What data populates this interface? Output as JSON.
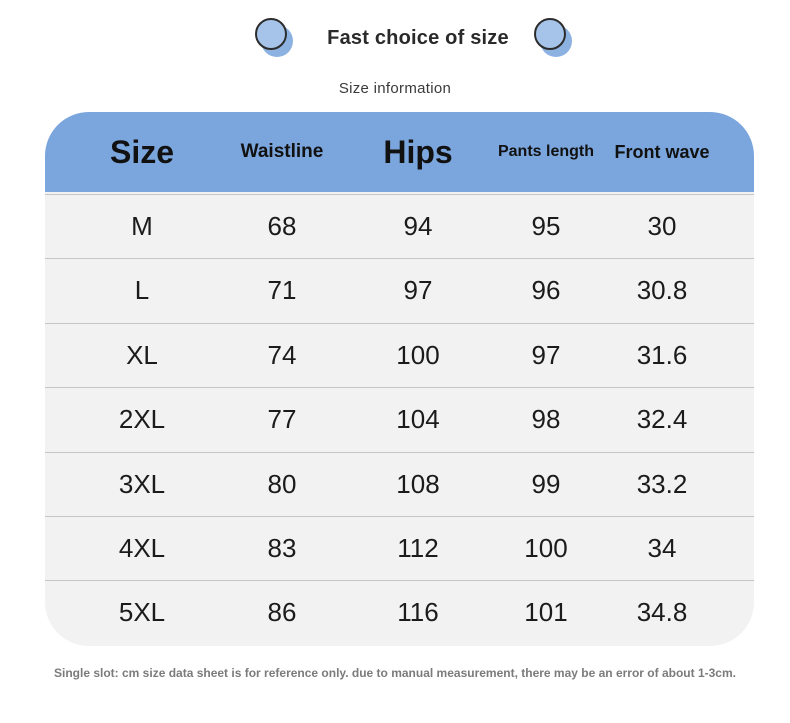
{
  "header": {
    "title": "Fast choice of size",
    "subtitle": "Size  information"
  },
  "table": {
    "columns": [
      "Size",
      "Waistline",
      "Hips",
      "Pants length",
      "Front wave"
    ],
    "rows": [
      [
        "M",
        "68",
        "94",
        "95",
        "30"
      ],
      [
        "L",
        "71",
        "97",
        "96",
        "30.8"
      ],
      [
        "XL",
        "74",
        "100",
        "97",
        "31.6"
      ],
      [
        "2XL",
        "77",
        "104",
        "98",
        "32.4"
      ],
      [
        "3XL",
        "80",
        "108",
        "99",
        "33.2"
      ],
      [
        "4XL",
        "83",
        "112",
        "100",
        "34"
      ],
      [
        "5XL",
        "86",
        "116",
        "101",
        "34.8"
      ]
    ]
  },
  "footnote": "Single slot: cm size data sheet is for reference only. due to manual measurement, there may be an error of about 1-3cm.",
  "colors": {
    "header_blue": "#7aa6dd",
    "row_bg": "#f2f2f2",
    "circle_blue": "#8bb2e0"
  }
}
